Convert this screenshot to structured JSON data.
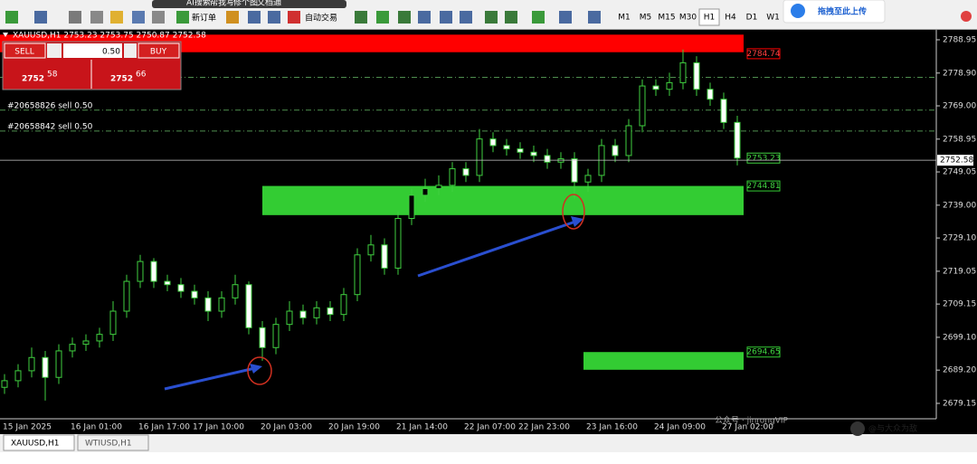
{
  "browser_bar": [
    "AI搜索",
    "帮我写",
    "修个图",
    "文档通"
  ],
  "toolbar": {
    "new_order": "新订单",
    "auto_trading": "自动交易",
    "timeframes": [
      "M1",
      "M5",
      "M15",
      "M30",
      "H1",
      "H4",
      "D1",
      "W1"
    ],
    "active_timeframe": "H1"
  },
  "upload_badge": "拖拽至此上传",
  "one_click": {
    "sell": "SELL",
    "buy": "BUY",
    "volume": "0.50",
    "bid_big": "2752",
    "bid_small": "58",
    "ask_big": "2752",
    "ask_small": "66"
  },
  "chart_data": {
    "type": "candlestick",
    "title": "XAUUSD,H1  2753.23 2753.75 2750.87 2752.58",
    "categories": [
      "15 Jan 2025",
      null,
      null,
      null,
      null,
      "16 Jan 01:00",
      null,
      null,
      null,
      null,
      "16 Jan 17:00",
      null,
      null,
      null,
      "17 Jan 10:00",
      null,
      null,
      null,
      null,
      "20 Jan 03:00",
      null,
      null,
      null,
      null,
      "20 Jan 19:00",
      null,
      null,
      null,
      null,
      "21 Jan 14:00",
      null,
      null,
      null,
      null,
      "22 Jan 07:00",
      null,
      null,
      null,
      "22 Jan 23:00",
      null,
      null,
      null,
      null,
      "23 Jan 16:00",
      null,
      null,
      null,
      null,
      "24 Jan 09:00",
      null,
      null,
      null,
      null,
      "27 Jan 02:00",
      null
    ],
    "ohlc": [
      [
        2684,
        2688,
        2682,
        2686
      ],
      [
        2686,
        2691,
        2684,
        2689
      ],
      [
        2689,
        2696,
        2687,
        2693
      ],
      [
        2693,
        2695,
        2680,
        2687
      ],
      [
        2687,
        2697,
        2685,
        2695
      ],
      [
        2695,
        2699,
        2693,
        2697
      ],
      [
        2697,
        2700,
        2695,
        2698
      ],
      [
        2698,
        2702,
        2696,
        2700
      ],
      [
        2700,
        2710,
        2698,
        2707
      ],
      [
        2707,
        2718,
        2705,
        2716
      ],
      [
        2716,
        2724,
        2714,
        2722
      ],
      [
        2722,
        2723,
        2714,
        2716
      ],
      [
        2716,
        2718,
        2713,
        2715
      ],
      [
        2715,
        2717,
        2711,
        2713
      ],
      [
        2713,
        2715,
        2709,
        2711
      ],
      [
        2711,
        2713,
        2704,
        2707
      ],
      [
        2707,
        2713,
        2705,
        2711
      ],
      [
        2711,
        2718,
        2709,
        2715
      ],
      [
        2715,
        2716,
        2700,
        2702
      ],
      [
        2702,
        2704,
        2692,
        2696
      ],
      [
        2696,
        2705,
        2694,
        2703
      ],
      [
        2703,
        2710,
        2701,
        2707
      ],
      [
        2707,
        2709,
        2703,
        2705
      ],
      [
        2705,
        2710,
        2703,
        2708
      ],
      [
        2708,
        2710,
        2704,
        2706
      ],
      [
        2706,
        2714,
        2704,
        2712
      ],
      [
        2712,
        2726,
        2710,
        2724
      ],
      [
        2724,
        2730,
        2722,
        2727
      ],
      [
        2727,
        2729,
        2718,
        2720
      ],
      [
        2720,
        2737,
        2718,
        2735
      ],
      [
        2735,
        2744,
        2733,
        2742
      ],
      [
        2742,
        2747,
        2740,
        2744
      ],
      [
        2744,
        2748,
        2742,
        2745
      ],
      [
        2745,
        2752,
        2743,
        2750
      ],
      [
        2750,
        2752,
        2746,
        2748
      ],
      [
        2748,
        2762,
        2746,
        2759
      ],
      [
        2759,
        2761,
        2755,
        2757
      ],
      [
        2757,
        2759,
        2754,
        2756
      ],
      [
        2756,
        2758,
        2753,
        2755
      ],
      [
        2755,
        2757,
        2752,
        2754
      ],
      [
        2754,
        2756,
        2750,
        2752
      ],
      [
        2752,
        2755,
        2750,
        2753
      ],
      [
        2753,
        2755,
        2741,
        2746
      ],
      [
        2746,
        2750,
        2743,
        2748
      ],
      [
        2748,
        2759,
        2746,
        2757
      ],
      [
        2757,
        2759,
        2752,
        2754
      ],
      [
        2754,
        2765,
        2752,
        2763
      ],
      [
        2763,
        2777,
        2761,
        2775
      ],
      [
        2775,
        2777,
        2772,
        2774
      ],
      [
        2774,
        2779,
        2772,
        2776
      ],
      [
        2776,
        2786,
        2774,
        2782
      ],
      [
        2782,
        2784,
        2772,
        2774
      ],
      [
        2774,
        2776,
        2769,
        2771
      ],
      [
        2771,
        2773,
        2762,
        2764
      ],
      [
        2764,
        2766,
        2751,
        2753.23
      ]
    ],
    "ylim": [
      2674.5,
      2791.95
    ],
    "yticks": [
      2788.95,
      {
        "value": 2778.9,
        "label": "2778.90"
      },
      {
        "value": 2769,
        "label": "2769.00"
      },
      2758.95,
      2749.05,
      {
        "value": 2739,
        "label": "2739.00"
      },
      {
        "value": 2729.1,
        "label": "2729.10"
      },
      2719.05,
      2709.15,
      {
        "value": 2699.1,
        "label": "2699.10"
      },
      {
        "value": 2689.2,
        "label": "2689.20"
      },
      2679.15
    ],
    "bull_color": "#3fcf3f",
    "bear_color": "#ffffff",
    "current_price": 2752.58,
    "zones": [
      {
        "top": 2790.5,
        "bottom": 2785.2,
        "color": "#ff0000",
        "label": 2784.74
      },
      {
        "top": 2744.81,
        "bottom": 2736.0,
        "color": "#33cc33",
        "label": 2744.81
      },
      {
        "top": 2694.65,
        "bottom": 2689.3,
        "color": "#33cc33",
        "label": 2694.65
      }
    ],
    "price_marker": 2753.23,
    "order_lines": [
      {
        "price": 2777.6,
        "label": null
      },
      {
        "price": 2767.7,
        "label": "#20658826 sell 0.50"
      },
      {
        "price": 2761.4,
        "label": "#20658842 sell 0.50"
      }
    ]
  },
  "tabs": [
    "XAUUSD,H1",
    "WTIUSD,H1"
  ],
  "watermark": {
    "account": "公众号 · jinrongVIP",
    "author": "@与大众为敌"
  }
}
